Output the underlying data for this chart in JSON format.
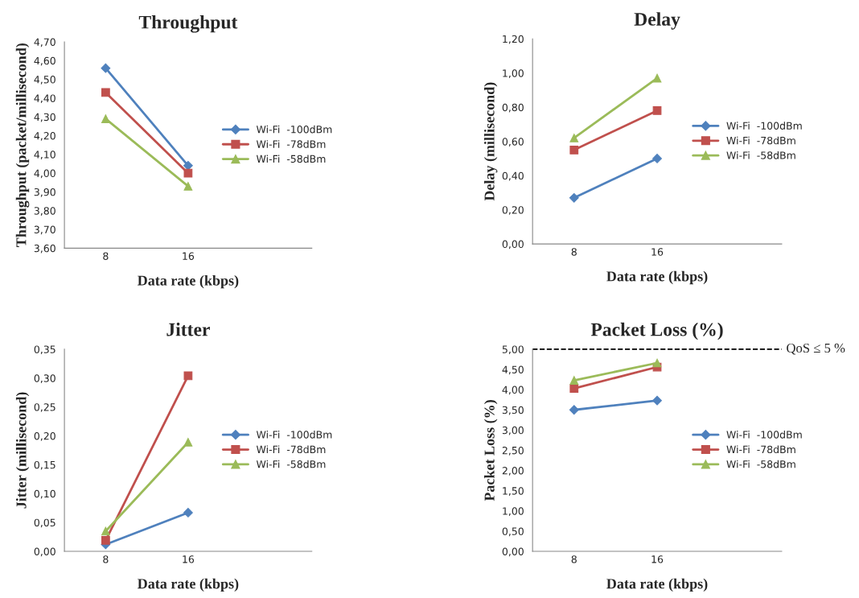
{
  "chart_data": [
    {
      "type": "line",
      "title": "Throughput",
      "xlabel": "Data rate (kbps)",
      "ylabel": "Throughput (packet/millisecond)",
      "categories": [
        "8",
        "16",
        null
      ],
      "legend": "right",
      "grid": false,
      "ylim": [
        3.6,
        4.7
      ],
      "yticks": [
        {
          "value": 3.6,
          "label": "3,60"
        },
        {
          "value": 3.7,
          "label": "3,70"
        },
        {
          "value": 3.8,
          "label": "3,80"
        },
        {
          "value": 3.9,
          "label": "3,90"
        },
        {
          "value": 4.0,
          "label": "4,00"
        },
        {
          "value": 4.1,
          "label": "4,10"
        },
        {
          "value": 4.2,
          "label": "4,20"
        },
        {
          "value": 4.3,
          "label": "4,30"
        },
        {
          "value": 4.4,
          "label": "4,40"
        },
        {
          "value": 4.5,
          "label": "4,50"
        },
        {
          "value": 4.6,
          "label": "4,60"
        },
        {
          "value": 4.7,
          "label": "4,70"
        }
      ],
      "series": [
        {
          "name": "Wi-Fi  -100dBm",
          "color": "#4f81bd",
          "marker": "diamond",
          "values": [
            4.56,
            4.04,
            null
          ]
        },
        {
          "name": "Wi-Fi  -78dBm",
          "color": "#c0504d",
          "marker": "square",
          "values": [
            4.43,
            4.0,
            null
          ]
        },
        {
          "name": "Wi-Fi  -58dBm",
          "color": "#9bbb59",
          "marker": "triangle",
          "values": [
            4.29,
            3.93,
            null
          ]
        }
      ]
    },
    {
      "type": "line",
      "title": "Delay",
      "xlabel": "Data rate (kbps)",
      "ylabel": "Delay (millisecond)",
      "categories": [
        "8",
        "16",
        null
      ],
      "legend": "right",
      "grid": false,
      "ylim": [
        0,
        1.2
      ],
      "yticks": [
        {
          "value": 0,
          "label": "0,00"
        },
        {
          "value": 0.2,
          "label": "0,20"
        },
        {
          "value": 0.4,
          "label": "0,40"
        },
        {
          "value": 0.6,
          "label": "0,60"
        },
        {
          "value": 0.8,
          "label": "0,80"
        },
        {
          "value": 1.0,
          "label": "1,00"
        },
        {
          "value": 1.2,
          "label": "1,20"
        }
      ],
      "series": [
        {
          "name": "Wi-Fi  -100dBm",
          "color": "#4f81bd",
          "marker": "diamond",
          "values": [
            0.27,
            0.5,
            null
          ]
        },
        {
          "name": "Wi-Fi  -78dBm",
          "color": "#c0504d",
          "marker": "square",
          "values": [
            0.55,
            0.78,
            null
          ]
        },
        {
          "name": "Wi-Fi  -58dBm",
          "color": "#9bbb59",
          "marker": "triangle",
          "values": [
            0.62,
            0.97,
            null
          ]
        }
      ]
    },
    {
      "type": "line",
      "title": "Jitter",
      "xlabel": "Data rate (kbps)",
      "ylabel": "Jitter (millisecond)",
      "categories": [
        "8",
        "16",
        null
      ],
      "legend": "right",
      "grid": false,
      "ylim": [
        0,
        0.35
      ],
      "yticks": [
        {
          "value": 0,
          "label": "0,00"
        },
        {
          "value": 0.05,
          "label": "0,05"
        },
        {
          "value": 0.1,
          "label": "0,10"
        },
        {
          "value": 0.15,
          "label": "0,15"
        },
        {
          "value": 0.2,
          "label": "0,20"
        },
        {
          "value": 0.25,
          "label": "0,25"
        },
        {
          "value": 0.3,
          "label": "0,30"
        },
        {
          "value": 0.35,
          "label": "0,35"
        }
      ],
      "series": [
        {
          "name": "Wi-Fi  -100dBm",
          "color": "#4f81bd",
          "marker": "diamond",
          "values": [
            0.012,
            0.067,
            null
          ]
        },
        {
          "name": "Wi-Fi  -78dBm",
          "color": "#c0504d",
          "marker": "square",
          "values": [
            0.019,
            0.304,
            null
          ]
        },
        {
          "name": "Wi-Fi  -58dBm",
          "color": "#9bbb59",
          "marker": "triangle",
          "values": [
            0.035,
            0.189,
            null
          ]
        }
      ]
    },
    {
      "type": "line",
      "title": "Packet Loss (%)",
      "xlabel": "Data rate (kbps)",
      "ylabel": "Packet Loss (%)",
      "categories": [
        "8",
        "16",
        null
      ],
      "legend": "right",
      "grid": false,
      "ylim": [
        0,
        5
      ],
      "yticks": [
        {
          "value": 0,
          "label": "0,00"
        },
        {
          "value": 0.5,
          "label": "0,50"
        },
        {
          "value": 1.0,
          "label": "1,00"
        },
        {
          "value": 1.5,
          "label": "1,50"
        },
        {
          "value": 2.0,
          "label": "2,00"
        },
        {
          "value": 2.5,
          "label": "2,50"
        },
        {
          "value": 3.0,
          "label": "3,00"
        },
        {
          "value": 3.5,
          "label": "3,50"
        },
        {
          "value": 4.0,
          "label": "4,00"
        },
        {
          "value": 4.5,
          "label": "4,50"
        },
        {
          "value": 5.0,
          "label": "5,00"
        }
      ],
      "ref_lines": [
        {
          "axis": "y",
          "value": 5,
          "label": "QoS ≤ 5 %",
          "color": "#000000",
          "line_style": "dashed"
        }
      ],
      "series": [
        {
          "name": "Wi-Fi  -100dBm",
          "color": "#4f81bd",
          "marker": "diamond",
          "values": [
            3.5,
            3.73,
            null
          ]
        },
        {
          "name": "Wi-Fi  -78dBm",
          "color": "#c0504d",
          "marker": "square",
          "values": [
            4.03,
            4.56,
            null
          ]
        },
        {
          "name": "Wi-Fi  -58dBm",
          "color": "#9bbb59",
          "marker": "triangle",
          "values": [
            4.23,
            4.66,
            null
          ]
        }
      ]
    }
  ]
}
